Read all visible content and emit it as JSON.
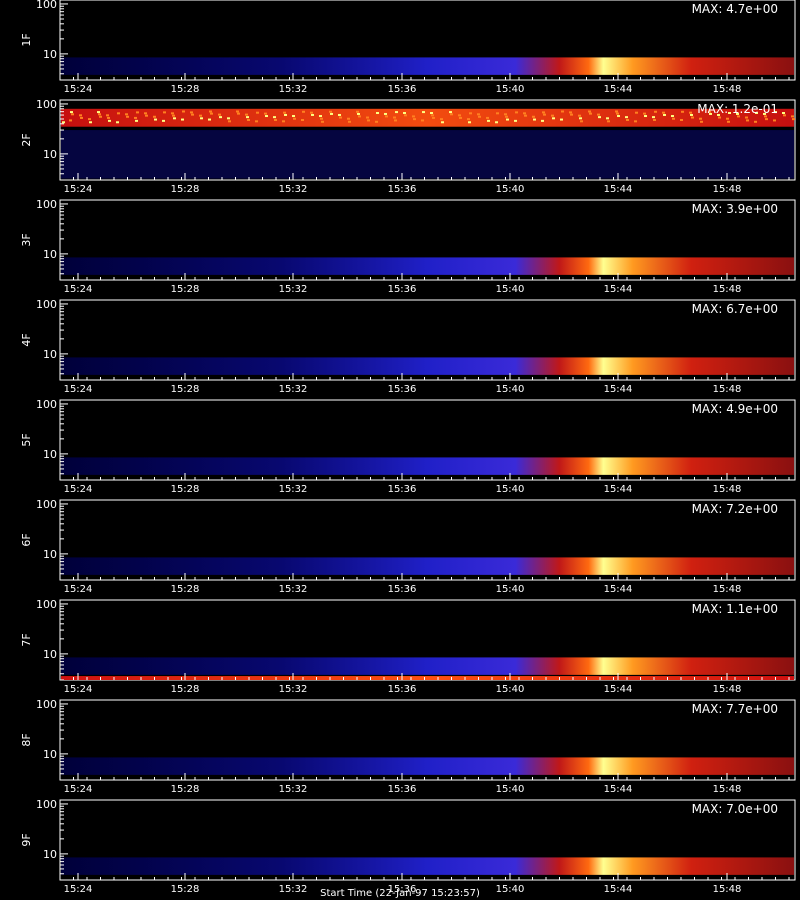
{
  "chart_data": {
    "type": "heatmap",
    "x_ticks": [
      "15:24",
      "15:28",
      "15:32",
      "15:36",
      "15:40",
      "15:44",
      "15:48"
    ],
    "y_ticks": [
      "10",
      "100"
    ],
    "y_scale": "log",
    "ylim": [
      3,
      120
    ],
    "colormap": [
      "#000000",
      "#00008b",
      "#3a3aff",
      "#c01010",
      "#ff4000",
      "#ffb020",
      "#ffff80"
    ],
    "panels": [
      {
        "label": "1F",
        "max": "MAX: 4.7e+00"
      },
      {
        "label": "2F",
        "max": "MAX: 1.2e-01"
      },
      {
        "label": "3F",
        "max": "MAX: 3.9e+00"
      },
      {
        "label": "4F",
        "max": "MAX: 6.7e+00"
      },
      {
        "label": "5F",
        "max": "MAX: 4.9e+00"
      },
      {
        "label": "6F",
        "max": "MAX: 7.2e+00"
      },
      {
        "label": "7F",
        "max": "MAX: 1.1e+00"
      },
      {
        "label": "8F",
        "max": "MAX: 7.7e+00"
      },
      {
        "label": "9F",
        "max": "MAX: 7.0e+00"
      }
    ]
  },
  "footer": {
    "text": "Start Time (22-Jan-97 15:23:57)"
  }
}
